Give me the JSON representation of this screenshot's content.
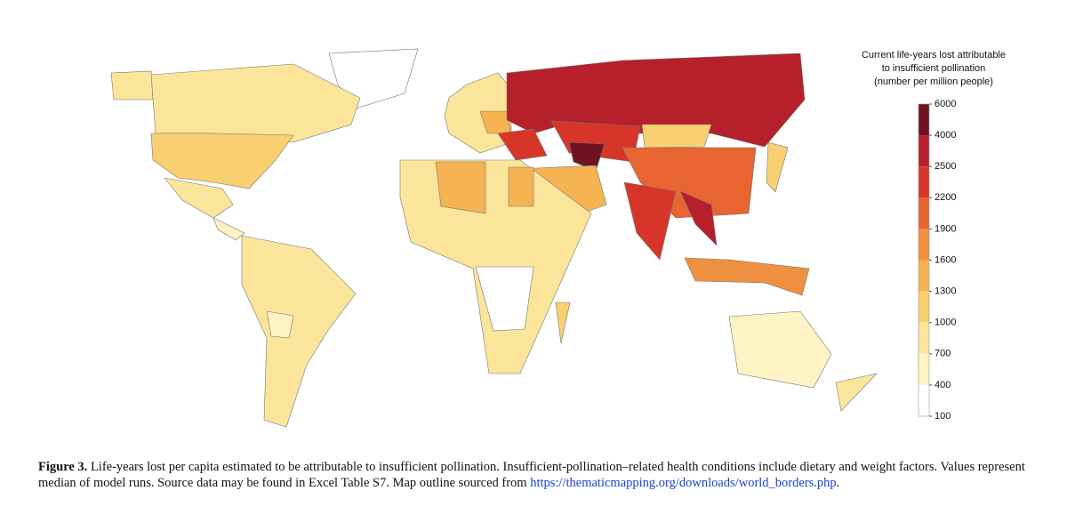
{
  "legend": {
    "title": [
      "Current life-years lost attributable",
      "to insufficient pollination",
      "(number per million people)"
    ],
    "ticks": [
      6000,
      4000,
      2500,
      2200,
      1900,
      1600,
      1300,
      1000,
      700,
      400,
      100
    ],
    "colors": [
      "#6e1420",
      "#b5202a",
      "#d8352a",
      "#e86431",
      "#ef9040",
      "#f5b352",
      "#f9d071",
      "#fbe59a",
      "#fdf3c4",
      "#ffffff"
    ]
  },
  "caption": {
    "label": "Figure 3.",
    "text": "Life-years lost per capita estimated to be attributable to insufficient pollination. Insufficient-pollination–related health conditions include dietary and weight factors. Values represent median of model runs. Source data may be found in Excel Table S7. Map outline sourced from",
    "link": "https://thematicmapping.org/downloads/world_borders.php",
    "end": "."
  }
}
